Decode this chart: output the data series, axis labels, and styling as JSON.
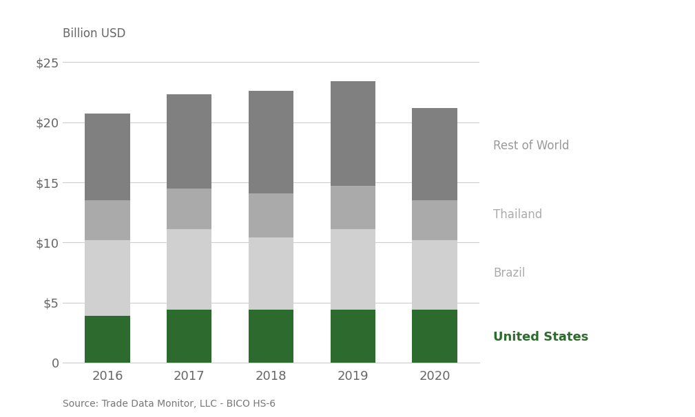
{
  "years": [
    "2016",
    "2017",
    "2018",
    "2019",
    "2020"
  ],
  "united_states": [
    3.9,
    4.4,
    4.4,
    4.4,
    4.4
  ],
  "brazil": [
    6.3,
    6.7,
    6.0,
    6.7,
    5.8
  ],
  "thailand": [
    3.3,
    3.4,
    3.7,
    3.6,
    3.3
  ],
  "rest_of_world": [
    7.2,
    7.8,
    8.5,
    8.7,
    7.7
  ],
  "colors": {
    "united_states": "#2d6a2d",
    "brazil": "#d0d0d0",
    "thailand": "#aaaaaa",
    "rest_of_world": "#808080"
  },
  "labels": {
    "united_states": "United States",
    "brazil": "Brazil",
    "thailand": "Thailand",
    "rest_of_world": "Rest of World"
  },
  "ylabel": "Billion USD",
  "ylim": [
    0,
    26
  ],
  "yticks": [
    0,
    5,
    10,
    15,
    20,
    25
  ],
  "ytick_labels": [
    "0",
    "$5",
    "$10",
    "$15",
    "$20",
    "$25"
  ],
  "source_text": "Source: Trade Data Monitor, LLC - BICO HS-6",
  "bar_width": 0.55,
  "background_color": "#ffffff",
  "grid_color": "#cccccc",
  "legend_items": [
    {
      "label": "Rest of World",
      "color": "#808080",
      "bold": false,
      "text_color": "#888888"
    },
    {
      "label": "Thailand",
      "color": "#aaaaaa",
      "bold": false,
      "text_color": "#aaaaaa"
    },
    {
      "label": "Brazil",
      "color": "#d0d0d0",
      "bold": false,
      "text_color": "#aaaaaa"
    },
    {
      "label": "United States",
      "color": "#2d6a2d",
      "bold": true,
      "text_color": "#2d6a2d"
    }
  ]
}
